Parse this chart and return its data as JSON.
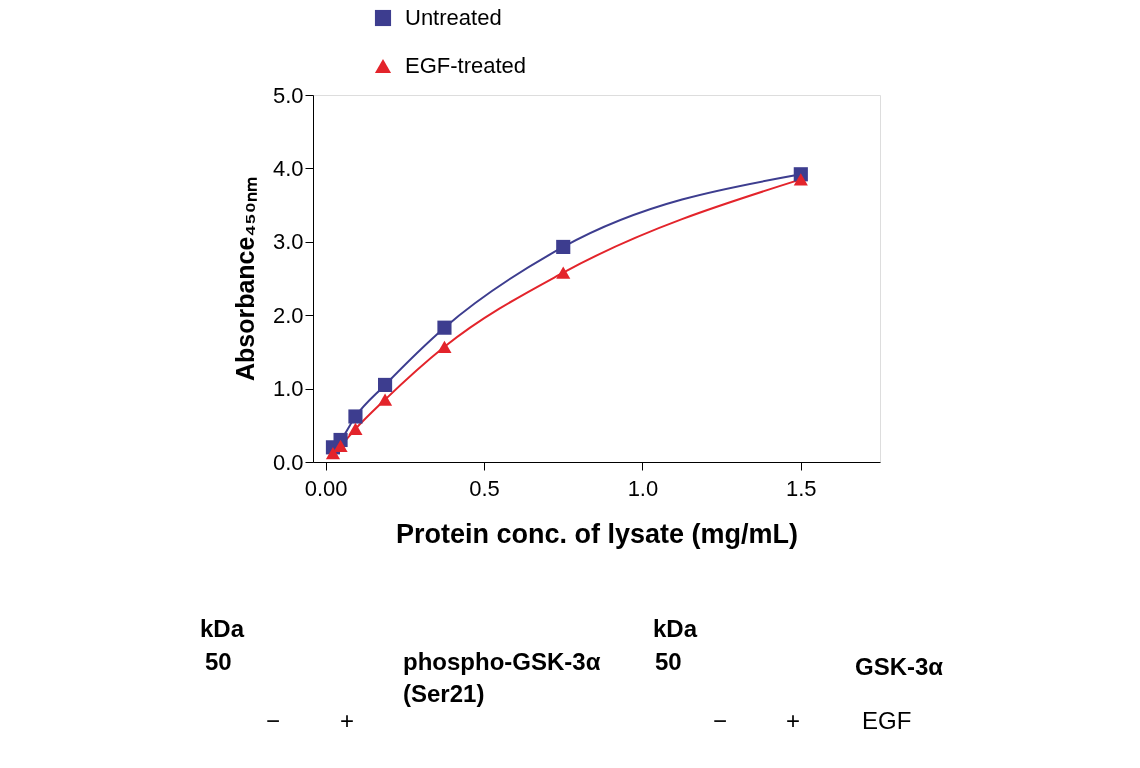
{
  "chart_data": {
    "type": "line",
    "xlabel": "Protein conc. of lysate (mg/mL)",
    "ylabel": "Absorbance₄₅₀ₙₘ",
    "x": [
      0.023,
      0.047,
      0.094,
      0.1875,
      0.375,
      0.75,
      1.5
    ],
    "series": [
      {
        "name": "Untreated",
        "color": "#3d3d8f",
        "marker": "square",
        "values": [
          0.2,
          0.3,
          0.62,
          1.05,
          1.83,
          2.93,
          3.92
        ]
      },
      {
        "name": "EGF-treated",
        "color": "#e3242b",
        "marker": "triangle",
        "values": [
          0.12,
          0.22,
          0.45,
          0.85,
          1.57,
          2.58,
          3.85
        ]
      }
    ],
    "xlim": [
      -0.04,
      1.75
    ],
    "xticks": [
      {
        "value": 0,
        "label": "0.00"
      },
      0.5,
      {
        "value": 1,
        "label": "1.0"
      },
      1.5
    ],
    "ylim": [
      0,
      5
    ],
    "yticks": [
      {
        "value": 0,
        "label": "0.0"
      },
      {
        "value": 1,
        "label": "1.0"
      },
      {
        "value": 2,
        "label": "2.0"
      },
      {
        "value": 3,
        "label": "3.0"
      },
      {
        "value": 4,
        "label": "4.0"
      },
      {
        "value": 5,
        "label": "5.0"
      }
    ],
    "grid": false,
    "legend": "top",
    "line_style": "solid",
    "annotations": [
      "kDa",
      "50",
      "phospho-GSK-3α (Ser21)",
      "−",
      "+",
      "kDa",
      "50",
      "GSK-3α",
      "−",
      "+",
      "EGF"
    ]
  }
}
